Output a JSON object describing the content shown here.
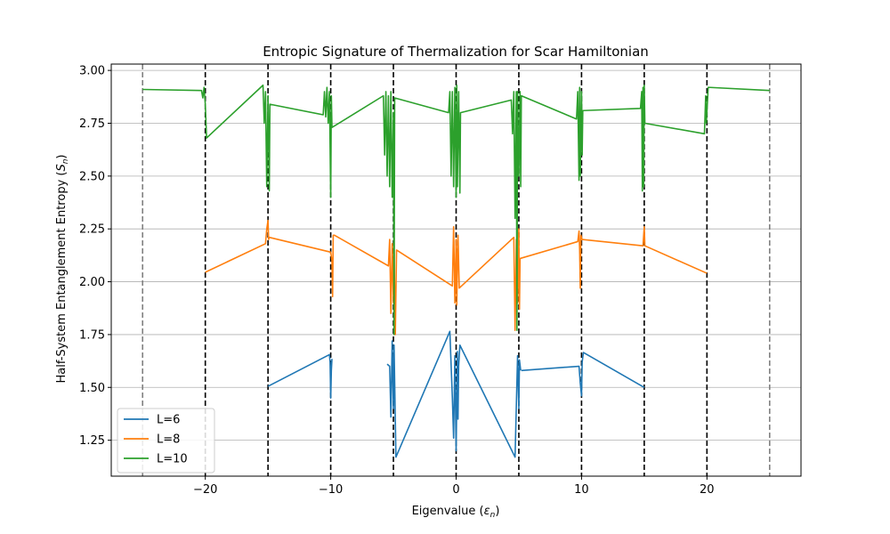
{
  "chart_data": {
    "type": "line",
    "title": "Entropic Signature of Thermalization for Scar Hamiltonian",
    "xlabel_main": "Eigenvalue (",
    "xlabel_symbol": "ε",
    "xlabel_sub": "n",
    "xlabel_close": ")",
    "ylabel_main": "Half-System Entanglement Entropy (",
    "ylabel_symbol": "S",
    "ylabel_sub": "n",
    "ylabel_close": ")",
    "xlim": [
      -27.5,
      27.5
    ],
    "ylim": [
      1.08,
      3.03
    ],
    "xticks": [
      -20,
      -10,
      0,
      10,
      20
    ],
    "xtick_labels": [
      "−20",
      "−10",
      "0",
      "10",
      "20"
    ],
    "yticks": [
      1.25,
      1.5,
      1.75,
      2.0,
      2.25,
      2.5,
      2.75,
      3.0
    ],
    "ytick_labels": [
      "1.25",
      "1.50",
      "1.75",
      "2.00",
      "2.25",
      "2.50",
      "2.75",
      "3.00"
    ],
    "grid": "horizontal",
    "legend_position": "lower-left",
    "vlines_black_dashed": [
      -20,
      -15,
      -10,
      -5,
      0,
      5,
      10,
      15,
      20
    ],
    "vlines_gray_dashed": [
      -25,
      25
    ],
    "series": [
      {
        "name": "L=6",
        "color": "#1f77b4",
        "segments": [
          [
            [
              -15,
              1.505
            ],
            [
              -10.1,
              1.655
            ],
            [
              -10.05,
              1.62
            ],
            [
              -10.0,
              1.45
            ],
            [
              -9.95,
              1.58
            ],
            [
              -9.9,
              1.635
            ]
          ],
          [
            [
              -5.5,
              1.61
            ],
            [
              -5.3,
              1.6
            ],
            [
              -5.2,
              1.36
            ],
            [
              -5.1,
              1.72
            ],
            [
              -5.0,
              1.4
            ],
            [
              -4.95,
              1.7
            ],
            [
              -4.8,
              1.17
            ],
            [
              -0.5,
              1.765
            ],
            [
              -0.3,
              1.45
            ],
            [
              -0.2,
              1.26
            ],
            [
              -0.1,
              1.65
            ],
            [
              0.0,
              1.2
            ],
            [
              0.1,
              1.67
            ],
            [
              0.15,
              1.35
            ],
            [
              0.2,
              1.6
            ],
            [
              0.3,
              1.7
            ],
            [
              4.7,
              1.17
            ],
            [
              4.9,
              1.65
            ],
            [
              5.0,
              1.4
            ],
            [
              5.05,
              1.63
            ],
            [
              5.15,
              1.58
            ]
          ],
          [
            [
              5.2,
              1.58
            ],
            [
              9.8,
              1.6
            ],
            [
              9.9,
              1.52
            ],
            [
              10.0,
              1.46
            ],
            [
              10.05,
              1.62
            ],
            [
              10.15,
              1.665
            ],
            [
              15.0,
              1.5
            ]
          ]
        ]
      },
      {
        "name": "L=8",
        "color": "#ff7f0e",
        "segments": [
          [
            [
              -20,
              2.045
            ],
            [
              -15.2,
              2.18
            ],
            [
              -15.1,
              2.25
            ],
            [
              -15.0,
              2.29
            ],
            [
              -14.95,
              2.2
            ],
            [
              -14.9,
              2.21
            ],
            [
              -10.0,
              2.14
            ],
            [
              -9.9,
              2.1
            ],
            [
              -9.85,
              1.93
            ],
            [
              -9.8,
              2.22
            ],
            [
              -9.7,
              2.22
            ],
            [
              -5.4,
              2.075
            ],
            [
              -5.3,
              2.2
            ],
            [
              -5.2,
              1.85
            ],
            [
              -5.1,
              2.18
            ],
            [
              -5.0,
              1.9
            ],
            [
              -4.95,
              2.15
            ],
            [
              -4.85,
              1.75
            ],
            [
              -4.75,
              2.15
            ],
            [
              -0.3,
              1.98
            ],
            [
              -0.2,
              2.26
            ],
            [
              -0.1,
              1.9
            ],
            [
              0.0,
              2.2
            ],
            [
              0.05,
              1.89
            ],
            [
              0.15,
              2.22
            ],
            [
              0.25,
              1.97
            ],
            [
              4.6,
              2.21
            ],
            [
              4.7,
              1.77
            ],
            [
              4.8,
              2.2
            ],
            [
              4.9,
              1.9
            ],
            [
              5.0,
              2.25
            ],
            [
              5.05,
              1.87
            ],
            [
              5.1,
              2.11
            ],
            [
              9.7,
              2.19
            ],
            [
              9.8,
              2.24
            ],
            [
              9.85,
              2.15
            ],
            [
              9.9,
              1.97
            ],
            [
              9.95,
              2.22
            ],
            [
              10.05,
              2.2
            ],
            [
              14.9,
              2.17
            ],
            [
              15.0,
              2.26
            ],
            [
              15.05,
              2.17
            ],
            [
              20,
              2.04
            ]
          ]
        ]
      },
      {
        "name": "L=10",
        "color": "#2ca02c",
        "segments": [
          [
            [
              -25,
              2.91
            ],
            [
              -20.3,
              2.905
            ],
            [
              -20.2,
              2.87
            ],
            [
              -20.1,
              2.92
            ],
            [
              -20.0,
              2.84
            ],
            [
              -19.9,
              2.68
            ],
            [
              -15.4,
              2.93
            ],
            [
              -15.3,
              2.75
            ],
            [
              -15.2,
              2.9
            ],
            [
              -15.1,
              2.45
            ],
            [
              -15.0,
              2.88
            ],
            [
              -14.9,
              2.43
            ],
            [
              -14.85,
              2.84
            ],
            [
              -10.6,
              2.79
            ],
            [
              -10.5,
              2.9
            ],
            [
              -10.4,
              2.78
            ],
            [
              -10.3,
              2.92
            ],
            [
              -10.2,
              2.75
            ],
            [
              -10.1,
              2.9
            ],
            [
              -10.0,
              2.4
            ],
            [
              -9.95,
              2.88
            ],
            [
              -9.9,
              2.73
            ],
            [
              -5.8,
              2.88
            ],
            [
              -5.7,
              2.6
            ],
            [
              -5.6,
              2.9
            ],
            [
              -5.5,
              2.5
            ],
            [
              -5.4,
              2.88
            ],
            [
              -5.3,
              2.45
            ],
            [
              -5.2,
              2.9
            ],
            [
              -5.1,
              2.4
            ],
            [
              -5.0,
              2.8
            ],
            [
              -4.95,
              1.75
            ],
            [
              -4.9,
              2.87
            ],
            [
              -0.6,
              2.8
            ],
            [
              -0.5,
              2.9
            ],
            [
              -0.4,
              2.5
            ],
            [
              -0.3,
              2.9
            ],
            [
              -0.2,
              2.45
            ],
            [
              -0.1,
              2.92
            ],
            [
              0.0,
              2.4
            ],
            [
              0.05,
              2.93
            ],
            [
              0.1,
              2.45
            ],
            [
              0.2,
              2.9
            ],
            [
              0.3,
              2.42
            ],
            [
              0.35,
              2.8
            ],
            [
              4.4,
              2.86
            ],
            [
              4.5,
              2.7
            ],
            [
              4.6,
              2.9
            ],
            [
              4.7,
              2.3
            ],
            [
              4.8,
              2.9
            ],
            [
              4.85,
              1.77
            ],
            [
              4.9,
              2.9
            ],
            [
              5.0,
              2.5
            ],
            [
              5.1,
              2.9
            ],
            [
              5.15,
              2.45
            ],
            [
              5.2,
              2.88
            ],
            [
              9.6,
              2.77
            ],
            [
              9.7,
              2.9
            ],
            [
              9.8,
              2.48
            ],
            [
              9.85,
              2.92
            ],
            [
              9.9,
              2.5
            ],
            [
              10.0,
              2.9
            ],
            [
              10.05,
              2.6
            ],
            [
              10.1,
              2.81
            ],
            [
              14.7,
              2.82
            ],
            [
              14.8,
              2.9
            ],
            [
              14.85,
              2.43
            ],
            [
              14.9,
              2.92
            ],
            [
              14.95,
              2.45
            ],
            [
              15.0,
              2.93
            ],
            [
              15.05,
              2.75
            ],
            [
              19.8,
              2.7
            ],
            [
              19.9,
              2.88
            ],
            [
              19.95,
              2.75
            ],
            [
              20.1,
              2.92
            ],
            [
              25,
              2.905
            ]
          ]
        ]
      }
    ]
  }
}
